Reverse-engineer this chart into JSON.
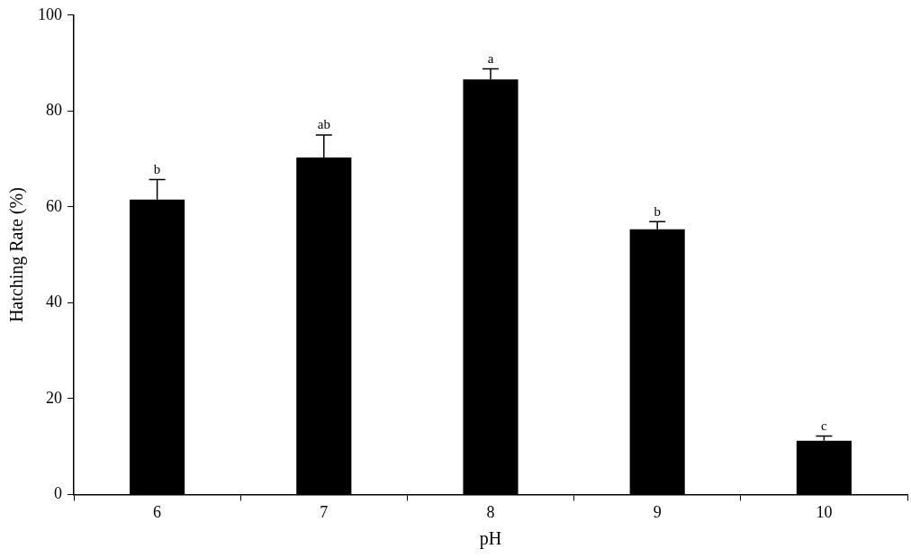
{
  "chart_data": {
    "type": "bar",
    "xlabel": "pH",
    "ylabel": "Hatching Rate (%)",
    "categories": [
      "6",
      "7",
      "8",
      "9",
      "10"
    ],
    "values": [
      61.5,
      70.3,
      86.6,
      55.3,
      11.2
    ],
    "errors": [
      [
        61.5,
        65.7
      ],
      [
        70.3,
        75
      ],
      [
        86.6,
        88.8
      ],
      [
        55.3,
        56.9
      ],
      [
        11.2,
        12.2
      ]
    ],
    "color": "#000000",
    "ylim": [
      0,
      100
    ],
    "yticks": [
      0,
      20,
      40,
      60,
      80,
      100
    ],
    "grid": false,
    "legend": false,
    "annotations": [
      {
        "text": "b",
        "x": "6",
        "y": 65.7
      },
      {
        "text": "ab",
        "x": "7",
        "y": 75
      },
      {
        "text": "a",
        "x": "8",
        "y": 88.8
      },
      {
        "text": "b",
        "x": "9",
        "y": 56.9
      },
      {
        "text": "c",
        "x": "10",
        "y": 12.2
      }
    ]
  }
}
